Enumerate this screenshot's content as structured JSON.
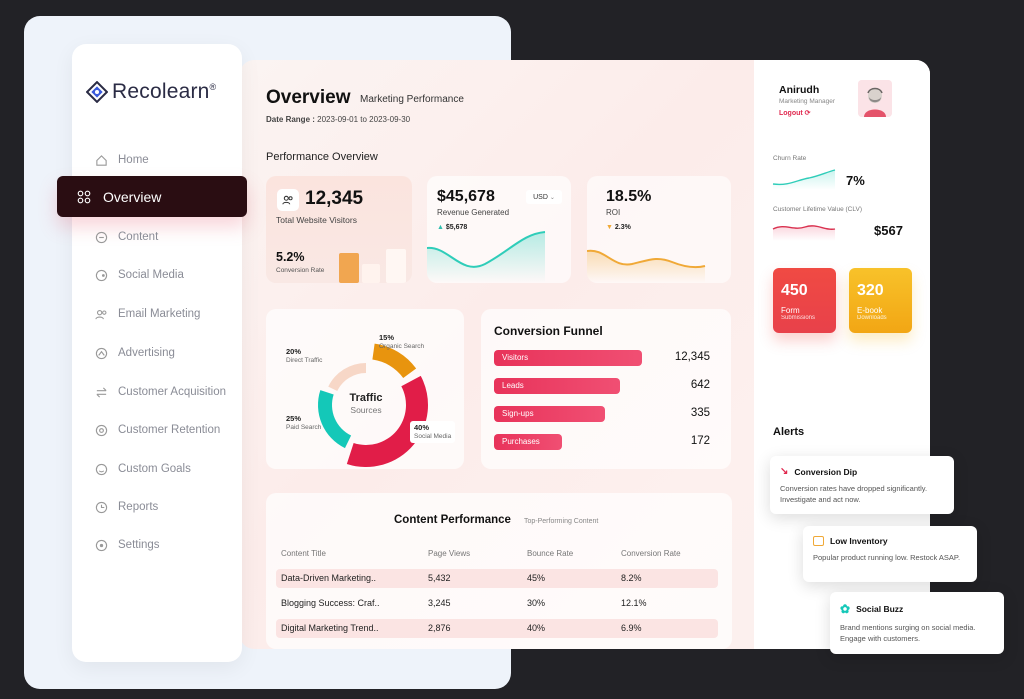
{
  "brand": {
    "name": "Recolearn",
    "reg": "®"
  },
  "nav": {
    "items": [
      {
        "label": "Home"
      },
      {
        "label": "Overview"
      },
      {
        "label": "Content"
      },
      {
        "label": "Social Media"
      },
      {
        "label": "Email Marketing"
      },
      {
        "label": "Advertising"
      },
      {
        "label": "Customer Acquisition"
      },
      {
        "label": "Customer Retention"
      },
      {
        "label": "Custom Goals"
      },
      {
        "label": "Reports"
      },
      {
        "label": "Settings"
      }
    ],
    "active": "Overview"
  },
  "header": {
    "title": "Overview",
    "subtitle": "Marketing Performance",
    "date_label": "Date Range :",
    "date_value": "2023-09-01 to 2023-09-30"
  },
  "performance": {
    "section_title": "Performance Overview",
    "visitors": {
      "value": "12,345",
      "label": "Total Website Visitors",
      "conv_value": "5.2%",
      "conv_label": "Conversion Rate"
    },
    "revenue": {
      "value": "$45,678",
      "label": "Revenue Generated",
      "currency": "USD",
      "delta": "$5,678"
    },
    "roi": {
      "value": "18.5%",
      "label": "ROI",
      "delta": "2.3%"
    }
  },
  "traffic": {
    "center_title": "Traffic",
    "center_sub": "Sources",
    "segments": [
      {
        "pct": "15%",
        "name": "Organic Search",
        "value": 15,
        "color": "#e8940e"
      },
      {
        "pct": "40%",
        "name": "Social Media",
        "value": 40,
        "color": "#e11d48"
      },
      {
        "pct": "25%",
        "name": "Paid Search",
        "value": 25,
        "color": "#14c8b8"
      },
      {
        "pct": "20%",
        "name": "Direct Traffic",
        "value": 20,
        "color": "#f7d7c7"
      }
    ]
  },
  "funnel": {
    "title": "Conversion Funnel",
    "max": 12345,
    "stages": [
      {
        "label": "Visitors",
        "value": "12,345",
        "fill": 0.68
      },
      {
        "label": "Leads",
        "value": "642",
        "fill": 0.58
      },
      {
        "label": "Sign-ups",
        "value": "335",
        "fill": 0.51
      },
      {
        "label": "Purchases",
        "value": "172",
        "fill": 0.31
      }
    ]
  },
  "content": {
    "title": "Content Performance",
    "subtitle": "Top-Performing Content",
    "headers": [
      "Content Title",
      "Page Views",
      "Bounce Rate",
      "Conversion Rate"
    ],
    "rows": [
      [
        "Data-Driven Marketing..",
        "5,432",
        "45%",
        "8.2%"
      ],
      [
        "Blogging Success: Craf..",
        "3,245",
        "30%",
        "12.1%"
      ],
      [
        "Digital Marketing Trend..",
        "2,876",
        "40%",
        "6.9%"
      ]
    ]
  },
  "user": {
    "name": "Anirudh",
    "role": "Marketing Manager",
    "logout": "Logout"
  },
  "metrics": {
    "churn": {
      "label": "Churn Rate",
      "value": "7%"
    },
    "clv": {
      "label": "Customer Lifetime Value (CLV)",
      "value": "$567"
    }
  },
  "tiles": [
    {
      "value": "450",
      "label": "Form",
      "sub": "Submissions",
      "color": "#ef4b3f"
    },
    {
      "value": "320",
      "label": "E-book",
      "sub": "Downloads",
      "color": "#f5b316"
    }
  ],
  "alerts": {
    "title": "Alerts",
    "items": [
      {
        "title": "Conversion Dip",
        "text": "Conversion rates have dropped significantly. Investigate and act now."
      },
      {
        "title": "Low Inventory",
        "text": "Popular product running low. Restock ASAP."
      },
      {
        "title": "Social Buzz",
        "text": "Brand mentions surging on social media. Engage with customers."
      }
    ]
  }
}
